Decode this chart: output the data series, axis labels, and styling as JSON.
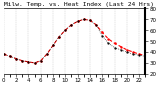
{
  "title": "Milw. Temp. vs. Heat Index (Last 24 Hrs)",
  "hours": [
    0,
    1,
    2,
    3,
    4,
    5,
    6,
    7,
    8,
    9,
    10,
    11,
    12,
    13,
    14,
    15,
    16,
    17,
    18,
    19,
    20,
    21,
    22,
    23
  ],
  "temp": [
    38,
    36,
    34,
    32,
    31,
    30,
    32,
    38,
    46,
    54,
    60,
    65,
    68,
    70,
    69,
    65,
    58,
    52,
    48,
    45,
    42,
    40,
    38,
    37
  ],
  "heat_index": [
    38,
    36,
    34,
    32,
    31,
    30,
    32,
    38,
    46,
    54,
    60,
    65,
    68,
    70,
    69,
    65,
    55,
    48,
    44,
    42,
    40,
    38,
    37,
    36
  ],
  "temp_color": "#ff0000",
  "heat_color": "#000000",
  "bg_color": "#ffffff",
  "grid_color": "#aaaaaa",
  "ylim": [
    20,
    80
  ],
  "yticks": [
    20,
    30,
    40,
    50,
    60,
    70,
    80
  ],
  "xticks": [
    0,
    2,
    4,
    6,
    8,
    10,
    12,
    14,
    16,
    18,
    20,
    22
  ],
  "xlabel_fontsize": 4,
  "ylabel_fontsize": 4,
  "title_fontsize": 4.5
}
